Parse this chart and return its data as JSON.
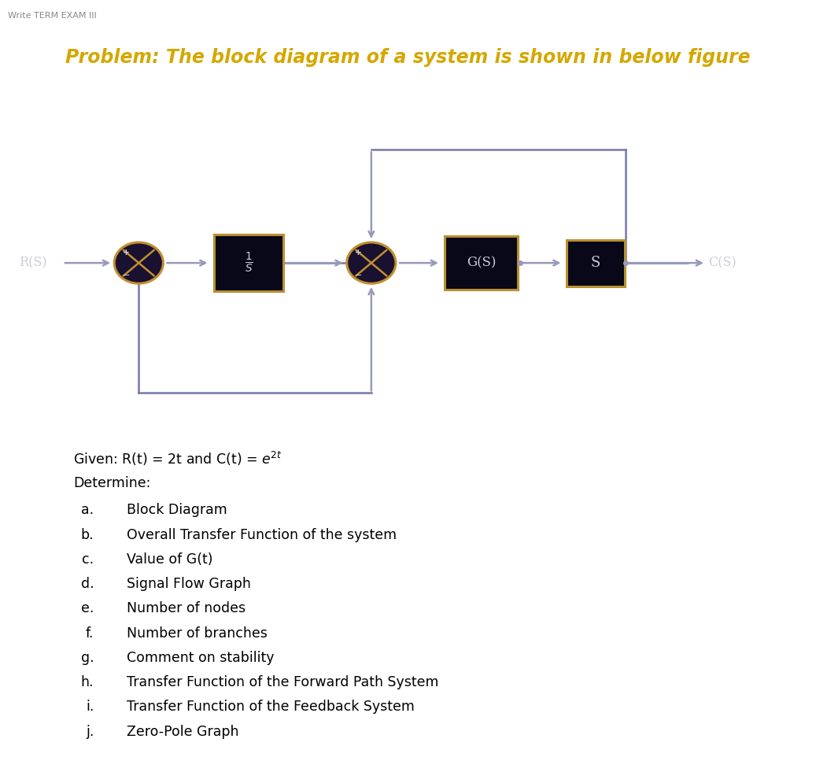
{
  "title_text": "Problem: The block diagram of a system is shown in below figure",
  "title_bg": "#08081a",
  "title_color": "#d4a800",
  "diagram_bg": "#06060f",
  "line_color": "#7777aa",
  "box_border_color": "#b89030",
  "box_bg": "#080818",
  "sumjunction_fill": "#1a1030",
  "sumjunction_border": "#c09030",
  "arrow_color": "#9999bb",
  "text_color_diagram": "#ccccdd",
  "header_small_text": "Write TERM EXAM III",
  "items": [
    [
      "a.",
      "Block Diagram"
    ],
    [
      "b.",
      "Overall Transfer Function of the system"
    ],
    [
      "c.",
      "Value of G(t)"
    ],
    [
      "d.",
      "Signal Flow Graph"
    ],
    [
      "e.",
      "Number of nodes"
    ],
    [
      "f.",
      "Number of branches"
    ],
    [
      "g.",
      "Comment on stability"
    ],
    [
      "h.",
      "Transfer Function of the Forward Path System"
    ],
    [
      "i.",
      "Transfer Function of the Feedback System"
    ],
    [
      "j.",
      "Zero-Pole Graph"
    ]
  ]
}
